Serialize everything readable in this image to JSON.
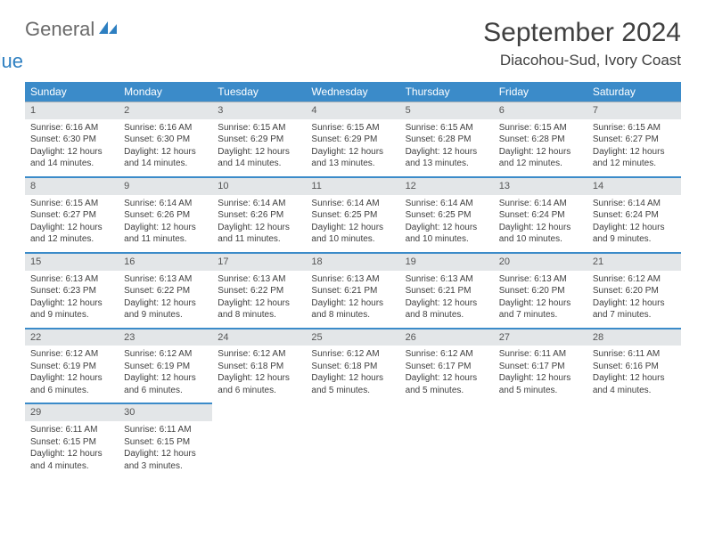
{
  "brand": {
    "part1": "General",
    "part2": "Blue"
  },
  "title": "September 2024",
  "location": "Diacohou-Sud, Ivory Coast",
  "colors": {
    "header_bg": "#3b8bc9",
    "header_text": "#ffffff",
    "daynum_bg": "#e3e6e8",
    "page_bg": "#ffffff",
    "text": "#3f3f3f",
    "brand_blue": "#2d7fc1",
    "brand_gray": "#6a6a6a"
  },
  "daysOfWeek": [
    "Sunday",
    "Monday",
    "Tuesday",
    "Wednesday",
    "Thursday",
    "Friday",
    "Saturday"
  ],
  "weeks": [
    [
      {
        "n": "1",
        "sr": "Sunrise: 6:16 AM",
        "ss": "Sunset: 6:30 PM",
        "d1": "Daylight: 12 hours",
        "d2": "and 14 minutes."
      },
      {
        "n": "2",
        "sr": "Sunrise: 6:16 AM",
        "ss": "Sunset: 6:30 PM",
        "d1": "Daylight: 12 hours",
        "d2": "and 14 minutes."
      },
      {
        "n": "3",
        "sr": "Sunrise: 6:15 AM",
        "ss": "Sunset: 6:29 PM",
        "d1": "Daylight: 12 hours",
        "d2": "and 14 minutes."
      },
      {
        "n": "4",
        "sr": "Sunrise: 6:15 AM",
        "ss": "Sunset: 6:29 PM",
        "d1": "Daylight: 12 hours",
        "d2": "and 13 minutes."
      },
      {
        "n": "5",
        "sr": "Sunrise: 6:15 AM",
        "ss": "Sunset: 6:28 PM",
        "d1": "Daylight: 12 hours",
        "d2": "and 13 minutes."
      },
      {
        "n": "6",
        "sr": "Sunrise: 6:15 AM",
        "ss": "Sunset: 6:28 PM",
        "d1": "Daylight: 12 hours",
        "d2": "and 12 minutes."
      },
      {
        "n": "7",
        "sr": "Sunrise: 6:15 AM",
        "ss": "Sunset: 6:27 PM",
        "d1": "Daylight: 12 hours",
        "d2": "and 12 minutes."
      }
    ],
    [
      {
        "n": "8",
        "sr": "Sunrise: 6:15 AM",
        "ss": "Sunset: 6:27 PM",
        "d1": "Daylight: 12 hours",
        "d2": "and 12 minutes."
      },
      {
        "n": "9",
        "sr": "Sunrise: 6:14 AM",
        "ss": "Sunset: 6:26 PM",
        "d1": "Daylight: 12 hours",
        "d2": "and 11 minutes."
      },
      {
        "n": "10",
        "sr": "Sunrise: 6:14 AM",
        "ss": "Sunset: 6:26 PM",
        "d1": "Daylight: 12 hours",
        "d2": "and 11 minutes."
      },
      {
        "n": "11",
        "sr": "Sunrise: 6:14 AM",
        "ss": "Sunset: 6:25 PM",
        "d1": "Daylight: 12 hours",
        "d2": "and 10 minutes."
      },
      {
        "n": "12",
        "sr": "Sunrise: 6:14 AM",
        "ss": "Sunset: 6:25 PM",
        "d1": "Daylight: 12 hours",
        "d2": "and 10 minutes."
      },
      {
        "n": "13",
        "sr": "Sunrise: 6:14 AM",
        "ss": "Sunset: 6:24 PM",
        "d1": "Daylight: 12 hours",
        "d2": "and 10 minutes."
      },
      {
        "n": "14",
        "sr": "Sunrise: 6:14 AM",
        "ss": "Sunset: 6:24 PM",
        "d1": "Daylight: 12 hours",
        "d2": "and 9 minutes."
      }
    ],
    [
      {
        "n": "15",
        "sr": "Sunrise: 6:13 AM",
        "ss": "Sunset: 6:23 PM",
        "d1": "Daylight: 12 hours",
        "d2": "and 9 minutes."
      },
      {
        "n": "16",
        "sr": "Sunrise: 6:13 AM",
        "ss": "Sunset: 6:22 PM",
        "d1": "Daylight: 12 hours",
        "d2": "and 9 minutes."
      },
      {
        "n": "17",
        "sr": "Sunrise: 6:13 AM",
        "ss": "Sunset: 6:22 PM",
        "d1": "Daylight: 12 hours",
        "d2": "and 8 minutes."
      },
      {
        "n": "18",
        "sr": "Sunrise: 6:13 AM",
        "ss": "Sunset: 6:21 PM",
        "d1": "Daylight: 12 hours",
        "d2": "and 8 minutes."
      },
      {
        "n": "19",
        "sr": "Sunrise: 6:13 AM",
        "ss": "Sunset: 6:21 PM",
        "d1": "Daylight: 12 hours",
        "d2": "and 8 minutes."
      },
      {
        "n": "20",
        "sr": "Sunrise: 6:13 AM",
        "ss": "Sunset: 6:20 PM",
        "d1": "Daylight: 12 hours",
        "d2": "and 7 minutes."
      },
      {
        "n": "21",
        "sr": "Sunrise: 6:12 AM",
        "ss": "Sunset: 6:20 PM",
        "d1": "Daylight: 12 hours",
        "d2": "and 7 minutes."
      }
    ],
    [
      {
        "n": "22",
        "sr": "Sunrise: 6:12 AM",
        "ss": "Sunset: 6:19 PM",
        "d1": "Daylight: 12 hours",
        "d2": "and 6 minutes."
      },
      {
        "n": "23",
        "sr": "Sunrise: 6:12 AM",
        "ss": "Sunset: 6:19 PM",
        "d1": "Daylight: 12 hours",
        "d2": "and 6 minutes."
      },
      {
        "n": "24",
        "sr": "Sunrise: 6:12 AM",
        "ss": "Sunset: 6:18 PM",
        "d1": "Daylight: 12 hours",
        "d2": "and 6 minutes."
      },
      {
        "n": "25",
        "sr": "Sunrise: 6:12 AM",
        "ss": "Sunset: 6:18 PM",
        "d1": "Daylight: 12 hours",
        "d2": "and 5 minutes."
      },
      {
        "n": "26",
        "sr": "Sunrise: 6:12 AM",
        "ss": "Sunset: 6:17 PM",
        "d1": "Daylight: 12 hours",
        "d2": "and 5 minutes."
      },
      {
        "n": "27",
        "sr": "Sunrise: 6:11 AM",
        "ss": "Sunset: 6:17 PM",
        "d1": "Daylight: 12 hours",
        "d2": "and 5 minutes."
      },
      {
        "n": "28",
        "sr": "Sunrise: 6:11 AM",
        "ss": "Sunset: 6:16 PM",
        "d1": "Daylight: 12 hours",
        "d2": "and 4 minutes."
      }
    ],
    [
      {
        "n": "29",
        "sr": "Sunrise: 6:11 AM",
        "ss": "Sunset: 6:15 PM",
        "d1": "Daylight: 12 hours",
        "d2": "and 4 minutes."
      },
      {
        "n": "30",
        "sr": "Sunrise: 6:11 AM",
        "ss": "Sunset: 6:15 PM",
        "d1": "Daylight: 12 hours",
        "d2": "and 3 minutes."
      },
      null,
      null,
      null,
      null,
      null
    ]
  ]
}
